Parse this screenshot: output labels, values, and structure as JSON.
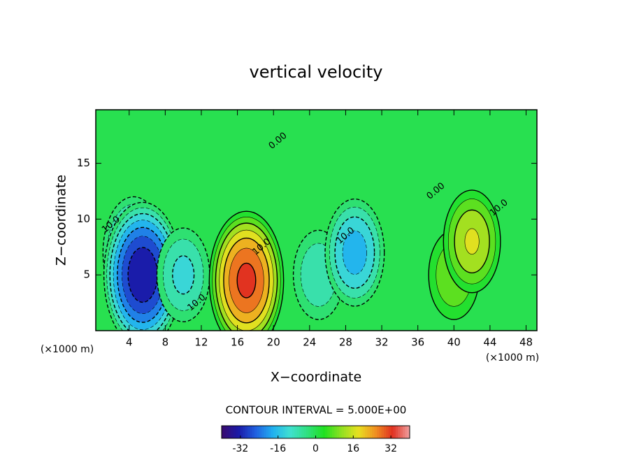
{
  "chart_data": {
    "type": "contour",
    "title": "vertical velocity",
    "x_label": "X−coordinate",
    "y_label": "Z−coordinate",
    "x_unit_left": "(×1000 m)",
    "x_unit_right": "(×1000 m)",
    "contour_interval_text": "CONTOUR INTERVAL = 5.000E+00",
    "contour_interval": 5,
    "xlim": [
      0.3,
      49.2
    ],
    "ylim": [
      0,
      19.8
    ],
    "xticks": [
      4,
      8,
      12,
      16,
      20,
      24,
      28,
      32,
      36,
      40,
      44,
      48
    ],
    "yticks": [
      5,
      10,
      15
    ],
    "features": [
      {
        "x": 4.5,
        "y": 7,
        "value": -20
      },
      {
        "x": 5.5,
        "y": 5,
        "value": -35
      },
      {
        "x": 10,
        "y": 5,
        "value": -12
      },
      {
        "x": 17,
        "y": 4.5,
        "value": 32
      },
      {
        "x": 25,
        "y": 5,
        "value": -10
      },
      {
        "x": 29,
        "y": 7,
        "value": -18
      },
      {
        "x": 40,
        "y": 5,
        "value": 10
      },
      {
        "x": 42,
        "y": 8,
        "value": 16
      }
    ],
    "contour_labels": [
      {
        "x": 2,
        "y": 9.5,
        "label": "10.0"
      },
      {
        "x": 18.7,
        "y": 7.5,
        "label": "10.0"
      },
      {
        "x": 11.5,
        "y": 2.5,
        "label": "10.0"
      },
      {
        "x": 28,
        "y": 8.5,
        "label": "10.0"
      },
      {
        "x": 45,
        "y": 11,
        "label": "10.0"
      },
      {
        "x": 38,
        "y": 12.5,
        "label": "0.00"
      },
      {
        "x": 20.5,
        "y": 17,
        "label": "0.00"
      }
    ],
    "colormap": [
      "#3a0a6e",
      "#1a1aa8",
      "#2060e0",
      "#20b0f0",
      "#40e0d0",
      "#30e080",
      "#20e020",
      "#90e020",
      "#e8e020",
      "#f09020",
      "#e03020",
      "#f0a0a0"
    ],
    "clim": [
      -40,
      40
    ],
    "cticks": [
      -32,
      -16,
      0,
      16,
      32
    ]
  }
}
